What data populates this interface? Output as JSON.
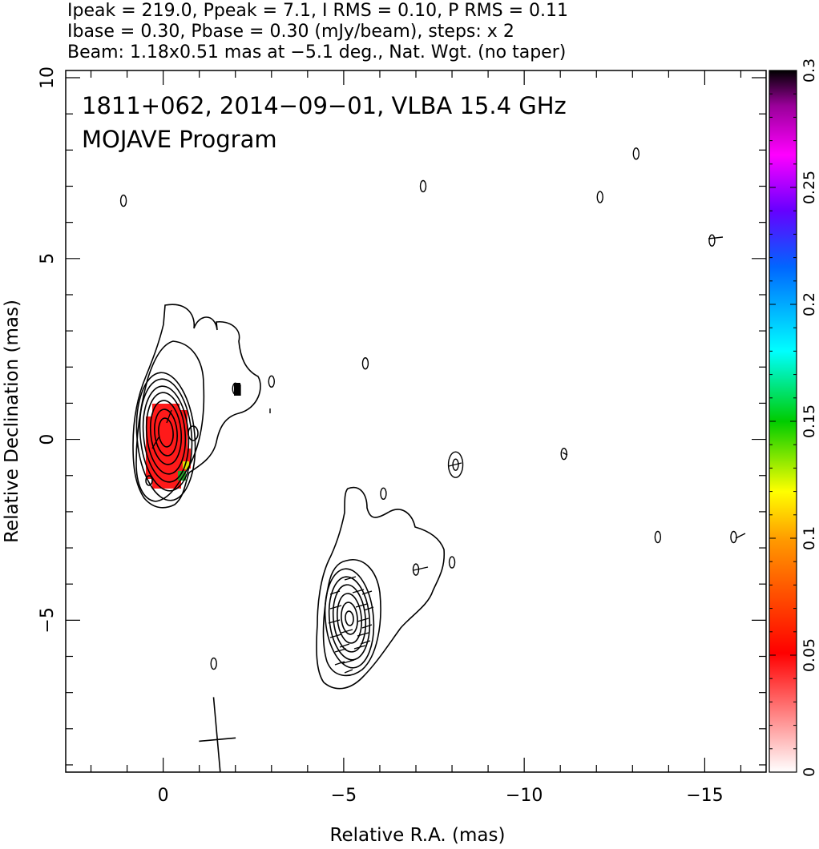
{
  "header": {
    "line1": "Ipeak = 219.0, Ppeak = 7.1, I RMS = 0.10, P RMS = 0.11",
    "line2": "Ibase = 0.30, Pbase = 0.30 (mJy/beam), steps: x 2",
    "line3": "Beam: 1.18x0.51 mas at −5.1 deg., Nat. Wgt. (no taper)"
  },
  "plot_text": {
    "source_line": "1811+062, 2014−09−01, VLBA 15.4 GHz",
    "program_line": "MOJAVE Program"
  },
  "chart_data": {
    "type": "heatmap",
    "title": "",
    "xlabel": "Relative R.A. (mas)",
    "ylabel": "Relative Declination (mas)",
    "xlim": [
      2.7,
      -16.7
    ],
    "ylim": [
      -9.2,
      10.2
    ],
    "x_ticks": [
      0,
      -5,
      -10,
      -15
    ],
    "x_tick_labels": [
      "0",
      "−5",
      "−10",
      "−15"
    ],
    "y_ticks": [
      10,
      5,
      0,
      -5
    ],
    "y_tick_labels": [
      "10",
      "5",
      "0",
      "−5"
    ],
    "colorbar": {
      "range": [
        0,
        0.3
      ],
      "ticks": [
        0,
        0.05,
        0.1,
        0.15,
        0.2,
        0.25,
        0.3
      ],
      "tick_labels": [
        "0",
        "0.05",
        "0.1",
        "0.15",
        "0.2",
        "0.25",
        "0.3"
      ],
      "colors": [
        "#ffffff",
        "#ff0000",
        "#ff9900",
        "#ffff00",
        "#00cc00",
        "#00ffff",
        "#0066ff",
        "#6600ff",
        "#ff00ff",
        "#990099",
        "#000000"
      ]
    },
    "core": {
      "x": 0.0,
      "y": 0.1,
      "polarization_color": "#ff0000"
    },
    "jet_knot": {
      "x": -5.1,
      "y": -4.9
    },
    "restoring_beam": {
      "major_mas": 1.18,
      "minor_mas": 0.51,
      "pa_deg": -5.1,
      "x": -1.5,
      "y": -8.3
    },
    "noise_islands": [
      {
        "x": 1.1,
        "y": 6.6
      },
      {
        "x": -7.2,
        "y": 7.0
      },
      {
        "x": -13.1,
        "y": 7.9
      },
      {
        "x": -12.1,
        "y": 6.7
      },
      {
        "x": -15.2,
        "y": 5.5
      },
      {
        "x": -5.6,
        "y": 2.1
      },
      {
        "x": -3.0,
        "y": 1.6
      },
      {
        "x": -2.0,
        "y": 1.4
      },
      {
        "x": -8.1,
        "y": -0.7
      },
      {
        "x": -6.1,
        "y": -1.5
      },
      {
        "x": -11.1,
        "y": -0.4
      },
      {
        "x": -13.7,
        "y": -2.7
      },
      {
        "x": -15.8,
        "y": -2.7
      },
      {
        "x": -7.0,
        "y": -3.6
      },
      {
        "x": -8.0,
        "y": -3.4
      },
      {
        "x": -1.4,
        "y": -6.2
      }
    ]
  }
}
